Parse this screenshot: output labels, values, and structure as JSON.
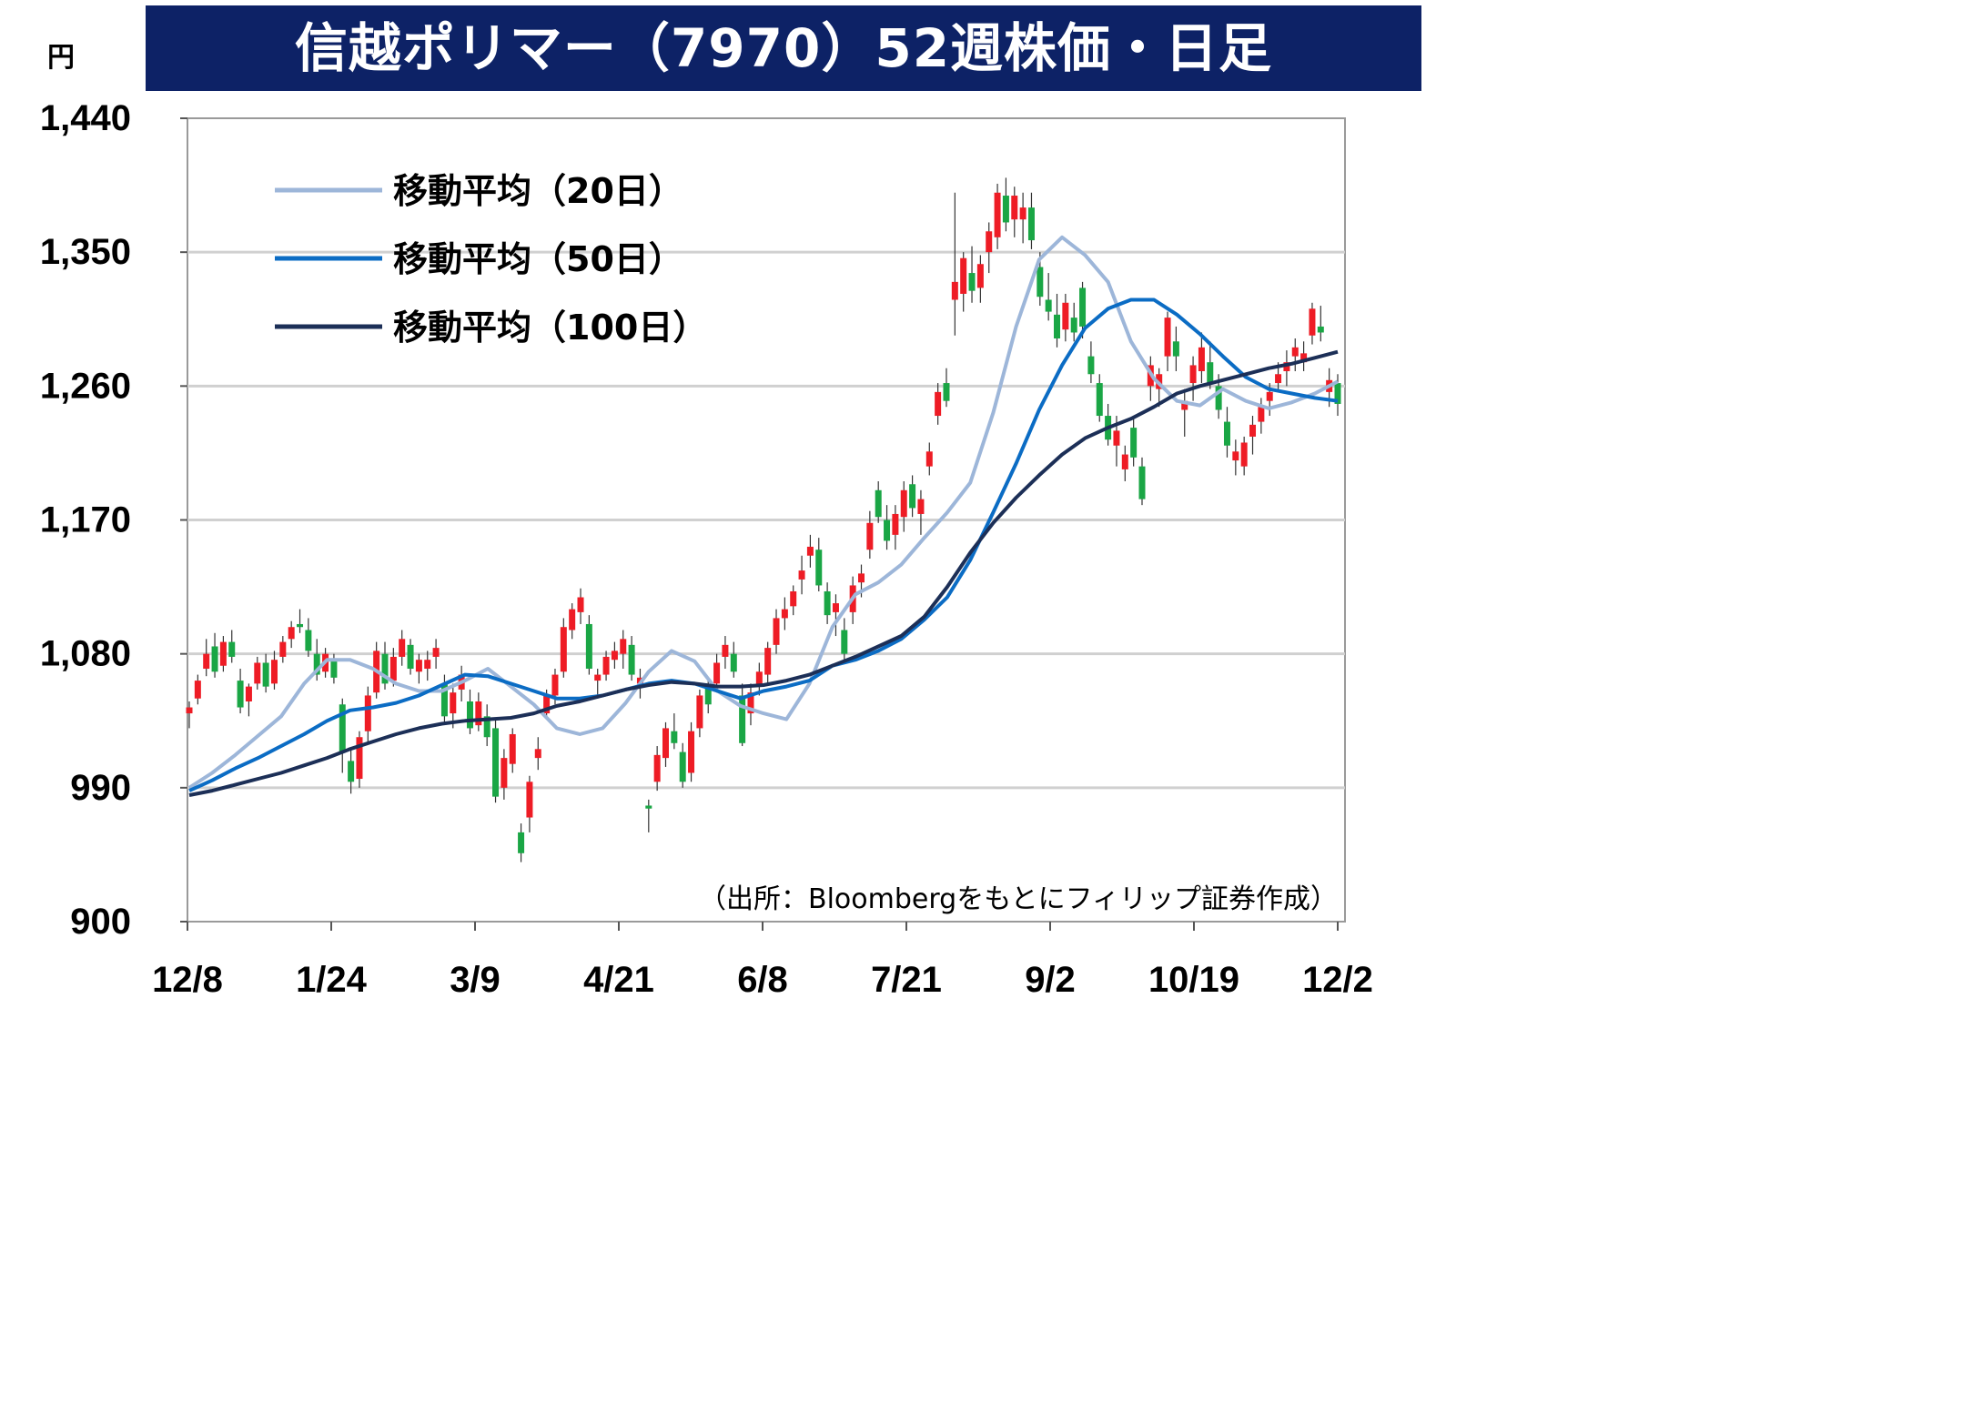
{
  "title": "信越ポリマー（7970）52週株価・日足",
  "unit": "円",
  "source_note": "（出所：Bloombergをもとにフィリップ証券作成）",
  "colors": {
    "title_bg": "#0d2266",
    "up": "#ee1c25",
    "down": "#1aa645",
    "ma20": "#9db6d9",
    "ma50": "#0b6cc4",
    "ma100": "#1c2f57",
    "grid": "#d0d0d0"
  },
  "chart_data": {
    "type": "candlestick",
    "title": "信越ポリマー（7970）52週株価・日足",
    "ylabel": "円",
    "ylim": [
      900,
      1440
    ],
    "yticks": [
      "1,440",
      "1,350",
      "1,260",
      "1,170",
      "1,080",
      "990",
      "900"
    ],
    "ytick_values": [
      1440,
      1350,
      1260,
      1170,
      1080,
      990,
      900
    ],
    "xticks": [
      "12/8",
      "1/24",
      "3/9",
      "4/21",
      "6/8",
      "7/21",
      "9/2",
      "10/19",
      "12/2"
    ],
    "grid": true,
    "legend_position": "top-left",
    "legend": [
      "移動平均（20日）",
      "移動平均（50日）",
      "移動平均（100日）"
    ],
    "series": [
      {
        "name": "移動平均（20日）",
        "values": [
          990,
          1000,
          1012,
          1025,
          1038,
          1060,
          1076,
          1076,
          1070,
          1060,
          1055,
          1055,
          1062,
          1070,
          1058,
          1046,
          1030,
          1026,
          1030,
          1047,
          1068,
          1082,
          1075,
          1055,
          1045,
          1040,
          1036,
          1060,
          1098,
          1120,
          1128,
          1140,
          1158,
          1175,
          1195,
          1242,
          1300,
          1345,
          1360,
          1348,
          1330,
          1290,
          1265,
          1250,
          1247,
          1258,
          1250,
          1245,
          1249,
          1255,
          1263
        ]
      },
      {
        "name": "移動平均（50日）",
        "values": [
          988,
          995,
          1003,
          1010,
          1018,
          1026,
          1035,
          1042,
          1044,
          1047,
          1052,
          1059,
          1066,
          1065,
          1060,
          1055,
          1050,
          1050,
          1052,
          1056,
          1060,
          1062,
          1060,
          1055,
          1050,
          1055,
          1058,
          1062,
          1072,
          1076,
          1082,
          1090,
          1103,
          1118,
          1143,
          1175,
          1208,
          1244,
          1274,
          1299,
          1312,
          1318,
          1318,
          1308,
          1295,
          1280,
          1266,
          1258,
          1255,
          1252,
          1250
        ]
      },
      {
        "name": "移動平均（100日）",
        "values": [
          985,
          988,
          992,
          996,
          1000,
          1005,
          1010,
          1016,
          1021,
          1026,
          1030,
          1033,
          1035,
          1036,
          1037,
          1040,
          1045,
          1048,
          1052,
          1056,
          1059,
          1061,
          1060,
          1058,
          1058,
          1059,
          1062,
          1066,
          1072,
          1078,
          1085,
          1092,
          1105,
          1125,
          1148,
          1168,
          1185,
          1200,
          1214,
          1225,
          1232,
          1238,
          1246,
          1255,
          1260,
          1264,
          1268,
          1272,
          1275,
          1279,
          1283
        ]
      }
    ],
    "candles": [
      [
        1040,
        1048,
        1030,
        1044
      ],
      [
        1050,
        1066,
        1046,
        1062
      ],
      [
        1070,
        1090,
        1065,
        1080
      ],
      [
        1085,
        1094,
        1064,
        1068
      ],
      [
        1072,
        1092,
        1068,
        1088
      ],
      [
        1088,
        1096,
        1074,
        1078
      ],
      [
        1062,
        1070,
        1040,
        1044
      ],
      [
        1048,
        1060,
        1038,
        1058
      ],
      [
        1060,
        1078,
        1056,
        1074
      ],
      [
        1074,
        1080,
        1054,
        1058
      ],
      [
        1060,
        1082,
        1056,
        1076
      ],
      [
        1078,
        1092,
        1074,
        1088
      ],
      [
        1090,
        1102,
        1084,
        1098
      ],
      [
        1100,
        1110,
        1094,
        1098
      ],
      [
        1096,
        1104,
        1078,
        1082
      ],
      [
        1080,
        1090,
        1062,
        1066
      ],
      [
        1068,
        1084,
        1064,
        1080
      ],
      [
        1076,
        1080,
        1060,
        1064
      ],
      [
        1046,
        1050,
        1000,
        1014
      ],
      [
        1008,
        1016,
        986,
        994
      ],
      [
        996,
        1028,
        990,
        1024
      ],
      [
        1028,
        1058,
        1020,
        1052
      ],
      [
        1054,
        1088,
        1050,
        1082
      ],
      [
        1080,
        1088,
        1056,
        1060
      ],
      [
        1062,
        1084,
        1058,
        1078
      ],
      [
        1078,
        1096,
        1072,
        1090
      ],
      [
        1086,
        1090,
        1066,
        1070
      ],
      [
        1068,
        1080,
        1060,
        1076
      ],
      [
        1070,
        1082,
        1062,
        1076
      ],
      [
        1078,
        1090,
        1070,
        1084
      ],
      [
        1060,
        1066,
        1034,
        1038
      ],
      [
        1040,
        1060,
        1030,
        1054
      ],
      [
        1056,
        1072,
        1048,
        1066
      ],
      [
        1048,
        1056,
        1026,
        1030
      ],
      [
        1032,
        1054,
        1028,
        1048
      ],
      [
        1038,
        1046,
        1018,
        1024
      ],
      [
        1030,
        1036,
        980,
        984
      ],
      [
        990,
        1016,
        982,
        1010
      ],
      [
        1006,
        1030,
        1000,
        1026
      ],
      [
        960,
        966,
        940,
        946
      ],
      [
        970,
        998,
        960,
        994
      ],
      [
        1010,
        1024,
        1002,
        1016
      ],
      [
        1040,
        1056,
        1036,
        1052
      ],
      [
        1052,
        1070,
        1046,
        1066
      ],
      [
        1068,
        1104,
        1064,
        1098
      ],
      [
        1096,
        1114,
        1090,
        1110
      ],
      [
        1108,
        1124,
        1100,
        1118
      ],
      [
        1100,
        1106,
        1066,
        1070
      ],
      [
        1062,
        1070,
        1050,
        1066
      ],
      [
        1066,
        1082,
        1062,
        1078
      ],
      [
        1076,
        1088,
        1070,
        1082
      ],
      [
        1080,
        1096,
        1070,
        1090
      ],
      [
        1086,
        1092,
        1062,
        1066
      ],
      [
        1060,
        1070,
        1050,
        1064
      ],
      [
        978,
        982,
        960,
        976
      ],
      [
        994,
        1018,
        988,
        1012
      ],
      [
        1010,
        1034,
        1004,
        1030
      ],
      [
        1028,
        1040,
        1016,
        1020
      ],
      [
        1014,
        1020,
        990,
        994
      ],
      [
        1000,
        1034,
        994,
        1028
      ],
      [
        1030,
        1056,
        1024,
        1052
      ],
      [
        1058,
        1064,
        1040,
        1046
      ],
      [
        1060,
        1080,
        1054,
        1074
      ],
      [
        1078,
        1092,
        1070,
        1086
      ],
      [
        1080,
        1088,
        1064,
        1068
      ],
      [
        1052,
        1060,
        1018,
        1020
      ],
      [
        1040,
        1060,
        1032,
        1054
      ],
      [
        1058,
        1074,
        1052,
        1068
      ],
      [
        1066,
        1088,
        1060,
        1084
      ],
      [
        1086,
        1110,
        1080,
        1104
      ],
      [
        1104,
        1118,
        1096,
        1110
      ],
      [
        1112,
        1126,
        1106,
        1122
      ],
      [
        1130,
        1146,
        1120,
        1136
      ],
      [
        1146,
        1160,
        1138,
        1152
      ],
      [
        1150,
        1158,
        1122,
        1126
      ],
      [
        1122,
        1128,
        1100,
        1106
      ],
      [
        1108,
        1120,
        1092,
        1114
      ],
      [
        1096,
        1104,
        1074,
        1080
      ],
      [
        1108,
        1132,
        1100,
        1126
      ],
      [
        1128,
        1140,
        1118,
        1134
      ],
      [
        1150,
        1176,
        1144,
        1168
      ],
      [
        1190,
        1196,
        1168,
        1172
      ],
      [
        1170,
        1180,
        1150,
        1156
      ],
      [
        1160,
        1180,
        1150,
        1174
      ],
      [
        1172,
        1196,
        1162,
        1190
      ],
      [
        1194,
        1200,
        1172,
        1178
      ],
      [
        1174,
        1190,
        1160,
        1184
      ],
      [
        1206,
        1222,
        1200,
        1216
      ],
      [
        1240,
        1262,
        1234,
        1256
      ],
      [
        1262,
        1272,
        1246,
        1250
      ],
      [
        1318,
        1390,
        1294,
        1330
      ],
      [
        1322,
        1350,
        1310,
        1346
      ],
      [
        1336,
        1354,
        1316,
        1324
      ],
      [
        1326,
        1348,
        1316,
        1342
      ],
      [
        1350,
        1370,
        1336,
        1364
      ],
      [
        1360,
        1396,
        1352,
        1390
      ],
      [
        1388,
        1400,
        1364,
        1370
      ],
      [
        1372,
        1394,
        1360,
        1388
      ],
      [
        1372,
        1390,
        1356,
        1380
      ],
      [
        1380,
        1390,
        1352,
        1358
      ],
      [
        1340,
        1350,
        1314,
        1320
      ],
      [
        1318,
        1336,
        1304,
        1310
      ],
      [
        1308,
        1322,
        1286,
        1292
      ],
      [
        1298,
        1322,
        1290,
        1316
      ],
      [
        1306,
        1316,
        1290,
        1296
      ],
      [
        1326,
        1330,
        1292,
        1300
      ],
      [
        1280,
        1290,
        1262,
        1268
      ],
      [
        1262,
        1268,
        1236,
        1240
      ],
      [
        1240,
        1248,
        1220,
        1224
      ],
      [
        1220,
        1240,
        1206,
        1230
      ],
      [
        1204,
        1220,
        1196,
        1214
      ],
      [
        1232,
        1240,
        1206,
        1212
      ],
      [
        1206,
        1212,
        1180,
        1184
      ],
      [
        1260,
        1280,
        1250,
        1274
      ],
      [
        1258,
        1272,
        1246,
        1268
      ],
      [
        1280,
        1310,
        1270,
        1306
      ],
      [
        1290,
        1300,
        1270,
        1280
      ],
      [
        1244,
        1258,
        1226,
        1250
      ],
      [
        1262,
        1280,
        1250,
        1274
      ],
      [
        1270,
        1296,
        1262,
        1286
      ],
      [
        1276,
        1290,
        1258,
        1262
      ],
      [
        1260,
        1268,
        1238,
        1244
      ],
      [
        1236,
        1246,
        1212,
        1220
      ],
      [
        1210,
        1224,
        1200,
        1216
      ],
      [
        1206,
        1226,
        1200,
        1222
      ],
      [
        1226,
        1240,
        1214,
        1234
      ],
      [
        1236,
        1252,
        1228,
        1246
      ],
      [
        1250,
        1262,
        1240,
        1256
      ],
      [
        1262,
        1276,
        1256,
        1268
      ],
      [
        1270,
        1284,
        1260,
        1276
      ],
      [
        1280,
        1292,
        1270,
        1286
      ],
      [
        1276,
        1290,
        1270,
        1282
      ],
      [
        1294,
        1316,
        1288,
        1312
      ],
      [
        1300,
        1314,
        1290,
        1296
      ],
      [
        1256,
        1272,
        1246,
        1264
      ],
      [
        1262,
        1268,
        1240,
        1248
      ]
    ],
    "yshift": [
      0,
      0,
      0,
      0,
      0,
      0,
      0,
      0,
      0,
      0,
      0,
      0,
      0,
      0,
      0,
      0,
      0,
      0,
      0,
      0,
      0,
      0,
      0,
      0,
      0,
      0,
      0,
      0,
      0,
      0,
      0,
      0,
      0,
      0,
      0,
      0,
      0,
      0,
      0,
      0,
      0,
      0,
      0,
      0,
      0,
      0,
      0,
      0,
      0,
      0,
      0,
      0,
      0,
      0,
      0,
      0,
      0,
      0,
      0,
      0,
      0,
      0,
      0,
      0,
      0,
      0,
      0,
      0,
      0,
      0,
      0,
      0,
      0,
      0,
      0,
      0,
      0,
      0,
      0,
      0,
      0,
      0,
      0,
      0,
      0,
      0,
      0,
      0,
      0,
      0,
      0,
      0,
      0,
      0,
      0,
      0,
      0,
      0,
      0,
      0,
      0,
      0,
      0,
      0,
      0,
      0,
      0,
      0,
      0,
      0,
      0,
      0,
      0,
      0,
      0,
      0,
      0,
      0,
      0,
      0,
      0,
      0,
      0,
      0,
      0,
      0,
      0,
      0,
      0,
      0,
      0,
      0,
      0,
      0,
      0,
      0,
      0,
      0,
      0,
      0,
      0,
      0
    ]
  }
}
